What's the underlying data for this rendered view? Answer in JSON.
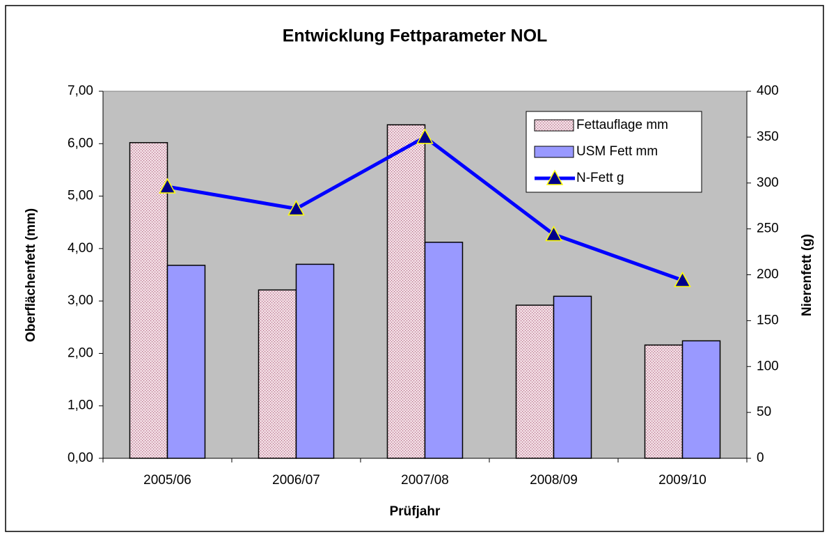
{
  "chart_data": {
    "type": "bar",
    "title": "Entwicklung Fettparameter NOL",
    "x_label": "Prüfjahr",
    "y_label": "Oberflächenfett (mm)",
    "y2_label": "Nierenfett (g)",
    "categories": [
      "2005/06",
      "2006/07",
      "2007/08",
      "2008/09",
      "2009/10"
    ],
    "series": [
      {
        "name": "Fettauflage mm",
        "type": "bar",
        "color": "#f2dde4",
        "values": [
          6.02,
          3.21,
          6.36,
          2.92,
          2.16
        ]
      },
      {
        "name": "USM Fett mm",
        "type": "bar",
        "color": "#9999ff",
        "values": [
          3.68,
          3.7,
          4.12,
          3.09,
          2.24
        ]
      },
      {
        "name": "N-Fett g",
        "type": "line",
        "axis": "y2",
        "color": "#0000ff",
        "marker_color": "#00008b",
        "values": [
          296,
          272,
          350,
          244,
          194
        ]
      }
    ],
    "ylim": [
      0,
      7
    ],
    "yticks": [
      {
        "value": 0,
        "label": "0,00"
      },
      {
        "value": 1,
        "label": "1,00"
      },
      {
        "value": 2,
        "label": "2,00"
      },
      {
        "value": 3,
        "label": "3,00"
      },
      {
        "value": 4,
        "label": "4,00"
      },
      {
        "value": 5,
        "label": "5,00"
      },
      {
        "value": 6,
        "label": "6,00"
      },
      {
        "value": 7,
        "label": "7,00"
      }
    ],
    "y2lim": [
      0,
      400
    ],
    "y2ticks": [
      0,
      50,
      100,
      150,
      200,
      250,
      300,
      350,
      400
    ],
    "legend": "upper right",
    "plot_background": "#c0c0c0"
  }
}
